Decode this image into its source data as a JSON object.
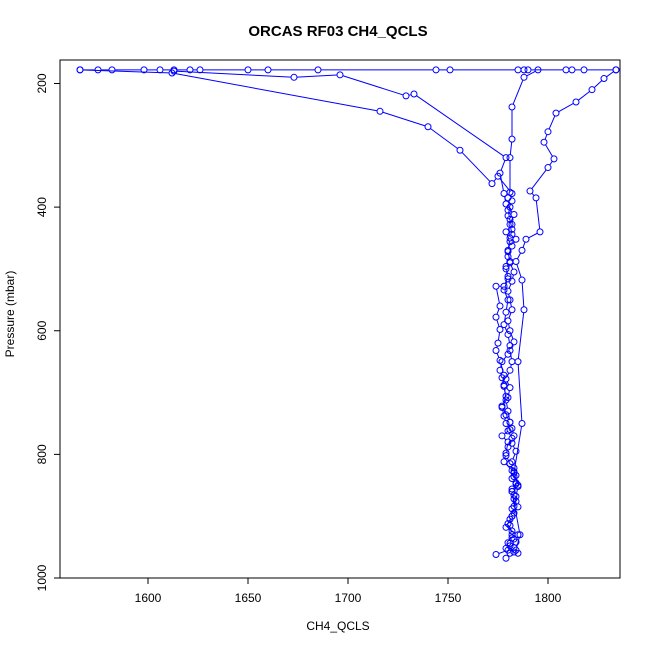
{
  "chart_data": {
    "type": "line",
    "title": "ORCAS RF03 CH4_QCLS",
    "xlabel": "CH4_QCLS",
    "ylabel": "Pressure (mbar)",
    "xlim": [
      1556,
      1836
    ],
    "ylim": [
      1000,
      162
    ],
    "y_reversed": true,
    "x_ticks": [
      1600,
      1650,
      1700,
      1750,
      1800
    ],
    "y_ticks": [
      200,
      400,
      600,
      800,
      1000
    ],
    "grid": false,
    "colors": {
      "series": "#0000ff"
    },
    "series": [
      {
        "marker": "open-circle",
        "points": [
          [
            1774,
            962
          ],
          [
            1780,
            955
          ],
          [
            1781,
            948
          ],
          [
            1784,
            942
          ],
          [
            1782,
            935
          ],
          [
            1785,
            930
          ],
          [
            1779,
            918
          ],
          [
            1781,
            905
          ],
          [
            1783,
            895
          ],
          [
            1782,
            888
          ],
          [
            1784,
            876
          ],
          [
            1783,
            866
          ],
          [
            1782,
            856
          ],
          [
            1784,
            846
          ],
          [
            1783,
            836
          ],
          [
            1782,
            826
          ],
          [
            1778,
            812
          ],
          [
            1779,
            798
          ],
          [
            1780,
            780
          ],
          [
            1777,
            770
          ],
          [
            1781,
            760
          ],
          [
            1779,
            750
          ],
          [
            1778,
            738
          ],
          [
            1777,
            724
          ],
          [
            1779,
            706
          ],
          [
            1778,
            690
          ],
          [
            1777,
            676
          ],
          [
            1776,
            664
          ],
          [
            1777,
            650
          ],
          [
            1780,
            638
          ],
          [
            1781,
            624
          ],
          [
            1780,
            606
          ],
          [
            1778,
            590
          ],
          [
            1779,
            570
          ],
          [
            1780,
            550
          ],
          [
            1778,
            534
          ],
          [
            1780,
            516
          ],
          [
            1779,
            500
          ],
          [
            1781,
            488
          ],
          [
            1780,
            472
          ],
          [
            1781,
            456
          ],
          [
            1779,
            440
          ],
          [
            1782,
            428
          ],
          [
            1780,
            414
          ],
          [
            1781,
            400
          ],
          [
            1780,
            385
          ],
          [
            1782,
            378
          ],
          [
            1775,
            350
          ],
          [
            1772,
            362
          ],
          [
            1756,
            308
          ],
          [
            1740,
            270
          ],
          [
            1716,
            245
          ],
          [
            1612,
            183
          ],
          [
            1566,
            178
          ]
        ]
      },
      {
        "marker": "open-circle",
        "points": [
          [
            1566,
            178
          ],
          [
            1575,
            178
          ],
          [
            1582,
            178
          ],
          [
            1598,
            178
          ],
          [
            1606,
            178
          ],
          [
            1613,
            178
          ],
          [
            1621,
            178
          ],
          [
            1626,
            178
          ],
          [
            1650,
            178
          ],
          [
            1660,
            178
          ],
          [
            1685,
            178
          ],
          [
            1744,
            178
          ],
          [
            1751,
            178
          ],
          [
            1785,
            178
          ],
          [
            1788,
            178
          ],
          [
            1790,
            178
          ],
          [
            1809,
            178
          ],
          [
            1812,
            178
          ],
          [
            1818,
            178
          ],
          [
            1834,
            178
          ]
        ]
      },
      {
        "marker": "open-circle",
        "points": [
          [
            1834,
            178
          ],
          [
            1828,
            192
          ],
          [
            1822,
            210
          ],
          [
            1814,
            230
          ],
          [
            1804,
            248
          ],
          [
            1800,
            278
          ],
          [
            1798,
            295
          ],
          [
            1803,
            322
          ],
          [
            1800,
            336
          ],
          [
            1791,
            374
          ],
          [
            1794,
            385
          ],
          [
            1796,
            440
          ],
          [
            1789,
            452
          ],
          [
            1787,
            470
          ],
          [
            1784,
            488
          ],
          [
            1787,
            518
          ],
          [
            1788,
            566
          ],
          [
            1785,
            650
          ],
          [
            1787,
            750
          ],
          [
            1783,
            830
          ],
          [
            1785,
            850
          ],
          [
            1782,
            860
          ],
          [
            1786,
            930
          ],
          [
            1784,
            955
          ]
        ]
      },
      {
        "marker": "open-circle",
        "points": [
          [
            1779,
            968
          ],
          [
            1781,
            960
          ],
          [
            1783,
            951
          ],
          [
            1781,
            944
          ],
          [
            1783,
            937
          ],
          [
            1782,
            924
          ],
          [
            1780,
            912
          ],
          [
            1782,
            900
          ],
          [
            1785,
            885
          ],
          [
            1783,
            872
          ],
          [
            1782,
            860
          ],
          [
            1784,
            848
          ],
          [
            1782,
            839
          ],
          [
            1783,
            828
          ],
          [
            1781,
            815
          ],
          [
            1779,
            802
          ],
          [
            1780,
            788
          ],
          [
            1782,
            774
          ],
          [
            1780,
            762
          ],
          [
            1781,
            748
          ],
          [
            1779,
            736
          ],
          [
            1777,
            722
          ],
          [
            1780,
            708
          ],
          [
            1781,
            692
          ],
          [
            1779,
            678
          ],
          [
            1781,
            664
          ],
          [
            1782,
            650
          ],
          [
            1781,
            632
          ],
          [
            1783,
            618
          ],
          [
            1781,
            600
          ],
          [
            1780,
            584
          ],
          [
            1782,
            566
          ],
          [
            1781,
            550
          ],
          [
            1780,
            536
          ],
          [
            1782,
            520
          ],
          [
            1783,
            505
          ],
          [
            1781,
            490
          ],
          [
            1780,
            470
          ],
          [
            1781,
            450
          ],
          [
            1782,
            436
          ],
          [
            1781,
            420
          ],
          [
            1780,
            405
          ],
          [
            1782,
            390
          ],
          [
            1781,
            376
          ],
          [
            1781,
            320
          ],
          [
            1782,
            290
          ],
          [
            1782,
            238
          ],
          [
            1788,
            190
          ],
          [
            1795,
            178
          ]
        ]
      },
      {
        "marker": "open-circle",
        "points": [
          [
            1613,
            180
          ],
          [
            1673,
            190
          ],
          [
            1696,
            186
          ],
          [
            1729,
            220
          ],
          [
            1733,
            217
          ],
          [
            1779,
            320
          ],
          [
            1776,
            345
          ],
          [
            1778,
            378
          ],
          [
            1779,
            395
          ],
          [
            1783,
            412
          ],
          [
            1781,
            428
          ],
          [
            1782,
            444
          ],
          [
            1784,
            452
          ],
          [
            1782,
            463
          ],
          [
            1780,
            480
          ],
          [
            1779,
            496
          ],
          [
            1780,
            512
          ],
          [
            1778,
            528
          ],
          [
            1774,
            528
          ],
          [
            1776,
            560
          ],
          [
            1774,
            578
          ],
          [
            1776,
            598
          ],
          [
            1775,
            620
          ],
          [
            1774,
            632
          ],
          [
            1776,
            648
          ],
          [
            1778,
            672
          ],
          [
            1778,
            688
          ],
          [
            1779,
            712
          ],
          [
            1780,
            730
          ],
          [
            1781,
            748
          ],
          [
            1782,
            758
          ],
          [
            1783,
            770
          ],
          [
            1782,
            782
          ],
          [
            1784,
            795
          ],
          [
            1782,
            812
          ],
          [
            1783,
            822
          ],
          [
            1784,
            834
          ],
          [
            1785,
            852
          ],
          [
            1784,
            868
          ],
          [
            1783,
            884
          ],
          [
            1782,
            900
          ],
          [
            1781,
            915
          ],
          [
            1782,
            930
          ],
          [
            1780,
            943
          ],
          [
            1779,
            952
          ],
          [
            1783,
            958
          ],
          [
            1785,
            960
          ]
        ]
      }
    ]
  }
}
